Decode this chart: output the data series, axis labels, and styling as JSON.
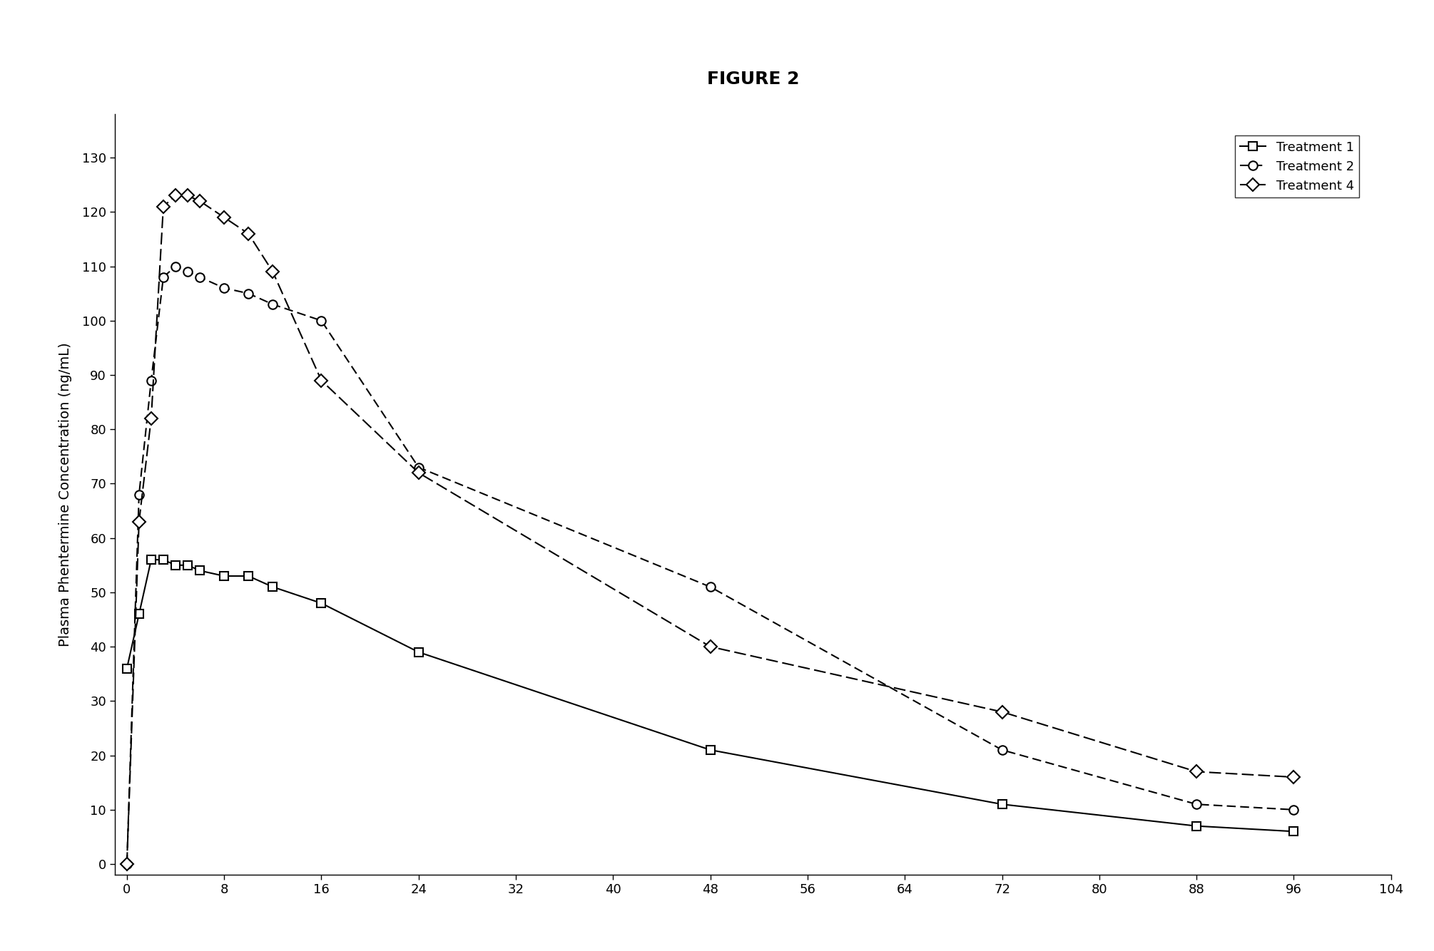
{
  "title": "FIGURE 2",
  "xlabel": "",
  "ylabel": "Plasma Phentermine Concentration (ng/mL)",
  "xlim": [
    -1,
    104
  ],
  "ylim": [
    -2,
    138
  ],
  "xticks": [
    0,
    8,
    16,
    24,
    32,
    40,
    48,
    56,
    64,
    72,
    80,
    88,
    96,
    104
  ],
  "yticks": [
    0,
    10,
    20,
    30,
    40,
    50,
    60,
    70,
    80,
    90,
    100,
    110,
    120,
    130
  ],
  "treatment1": {
    "x": [
      0,
      1,
      2,
      3,
      4,
      5,
      6,
      8,
      10,
      12,
      16,
      24,
      48,
      72,
      88,
      96
    ],
    "y": [
      36,
      46,
      56,
      56,
      55,
      55,
      54,
      53,
      53,
      51,
      48,
      39,
      21,
      11,
      7,
      6
    ],
    "label": "Treatment 1",
    "linestyle": "-",
    "marker": "s",
    "color": "#000000"
  },
  "treatment2": {
    "x": [
      0,
      1,
      2,
      3,
      4,
      5,
      6,
      8,
      10,
      12,
      16,
      24,
      48,
      72,
      88,
      96
    ],
    "y": [
      0,
      68,
      89,
      108,
      110,
      109,
      108,
      106,
      105,
      103,
      100,
      73,
      51,
      21,
      11,
      10
    ],
    "label": "Treatment 2",
    "linestyle": "--",
    "marker": "o",
    "color": "#000000"
  },
  "treatment4": {
    "x": [
      0,
      1,
      2,
      3,
      4,
      5,
      6,
      8,
      10,
      12,
      16,
      24,
      48,
      72,
      88,
      96
    ],
    "y": [
      0,
      63,
      82,
      121,
      123,
      123,
      122,
      119,
      116,
      109,
      89,
      72,
      40,
      28,
      17,
      16
    ],
    "label": "Treatment 4",
    "linestyle": "--",
    "marker": "D",
    "color": "#000000"
  },
  "background_color": "#ffffff",
  "title_fontsize": 18,
  "axis_fontsize": 14,
  "tick_fontsize": 13,
  "legend_fontsize": 13
}
